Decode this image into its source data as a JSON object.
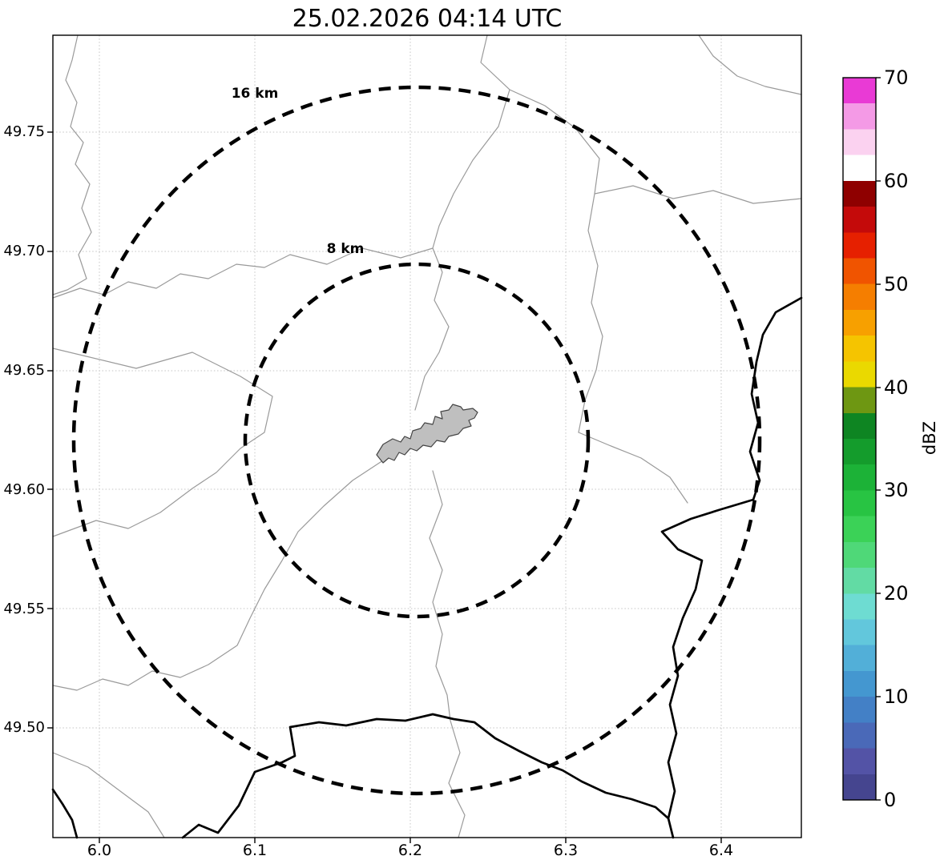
{
  "title": "25.02.2026 04:14 UTC",
  "axes": {
    "x_ticks": [
      "6.0",
      "6.1",
      "6.2",
      "6.3",
      "6.4"
    ],
    "y_ticks": [
      "49.75",
      "49.70",
      "49.65",
      "49.60",
      "49.55",
      "49.50"
    ]
  },
  "rings": {
    "outer_label": "16 km",
    "inner_label": "8 km"
  },
  "colorbar": {
    "label": "dBZ",
    "ticks": [
      "70",
      "60",
      "50",
      "40",
      "30",
      "20",
      "10",
      "0"
    ],
    "range": [
      0,
      70
    ],
    "colors_ascending": [
      "#45458f",
      "#5353a6",
      "#4a69b8",
      "#4380c6",
      "#4497d0",
      "#52afd8",
      "#62c7dc",
      "#6edcd2",
      "#62dba4",
      "#4fd878",
      "#3bd257",
      "#28c443",
      "#1cb237",
      "#149c2c",
      "#0e8522",
      "#6e9712",
      "#ead900",
      "#f5c400",
      "#f7a000",
      "#f57e00",
      "#f05400",
      "#e62000",
      "#c40a0a",
      "#8f0000",
      "#ffffff",
      "#fbd2f0",
      "#f49ae6",
      "#e93ad5"
    ]
  },
  "colors": {
    "admin_boundary": "#9a9a9a",
    "national_border": "#000000",
    "range_ring": "#000000",
    "grid": "#c4c4c4",
    "city_fill": "#bfbfbf",
    "city_outline": "#444444"
  }
}
